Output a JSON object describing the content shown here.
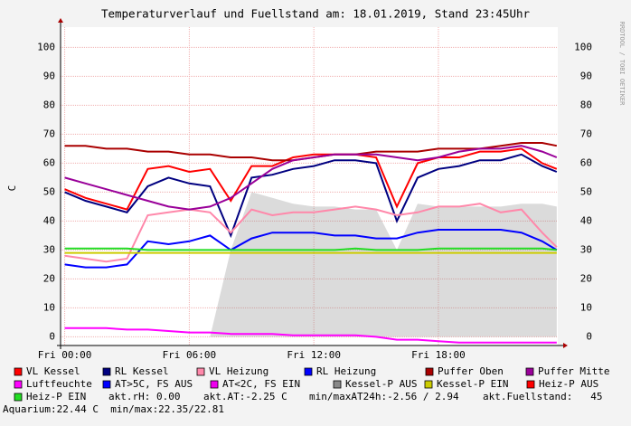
{
  "chart_data": {
    "type": "line",
    "title": "Temperaturverlauf und Fuellstand am: 18.01.2019, Stand 23:45Uhr",
    "ylabel": "C",
    "watermark": "RRDTOOL / TOBI OETIKER",
    "grid": true,
    "xlim": [
      -0.2,
      23.75
    ],
    "xticks": [
      {
        "value": 0,
        "label": "Fri 00:00"
      },
      {
        "value": 6,
        "label": "Fri 06:00"
      },
      {
        "value": 12,
        "label": "Fri 12:00"
      },
      {
        "value": 18,
        "label": "Fri 18:00"
      }
    ],
    "ylim": [
      -3,
      107
    ],
    "yticks": [
      0,
      10,
      20,
      30,
      40,
      50,
      60,
      70,
      80,
      90,
      100
    ],
    "x": [
      0,
      1,
      2,
      3,
      4,
      5,
      6,
      7,
      8,
      9,
      10,
      11,
      12,
      13,
      14,
      15,
      16,
      17,
      18,
      19,
      20,
      21,
      22,
      23,
      23.7
    ],
    "series": [
      {
        "name": "VL Kessel",
        "color": "#ff0000",
        "values": [
          51,
          48,
          46,
          44,
          58,
          59,
          57,
          58,
          47,
          59,
          59,
          62,
          63,
          63,
          63,
          62,
          45,
          60,
          62,
          62,
          64,
          64,
          65,
          60,
          58
        ]
      },
      {
        "name": "RL Kessel",
        "color": "#000080",
        "values": [
          50,
          47,
          45,
          43,
          52,
          55,
          53,
          52,
          35,
          55,
          56,
          58,
          59,
          61,
          61,
          60,
          40,
          55,
          58,
          59,
          61,
          61,
          63,
          59,
          57
        ]
      },
      {
        "name": "VL Heizung",
        "color": "#ff88aa",
        "values": [
          28,
          27,
          26,
          27,
          42,
          43,
          44,
          43,
          36,
          44,
          42,
          43,
          43,
          44,
          45,
          44,
          42,
          43,
          45,
          45,
          46,
          43,
          44,
          36,
          31
        ]
      },
      {
        "name": "RL Heizung",
        "color": "#0000ff",
        "values": [
          25,
          24,
          24,
          25,
          33,
          32,
          33,
          35,
          30,
          34,
          36,
          36,
          36,
          35,
          35,
          34,
          34,
          36,
          37,
          37,
          37,
          37,
          36,
          33,
          30
        ]
      },
      {
        "name": "Puffer Oben",
        "color": "#aa0000",
        "values": [
          66,
          66,
          65,
          65,
          64,
          64,
          63,
          63,
          62,
          62,
          61,
          61,
          62,
          63,
          63,
          64,
          64,
          64,
          65,
          65,
          65,
          66,
          67,
          67,
          66
        ]
      },
      {
        "name": "Puffer Mitte",
        "color": "#990099",
        "values": [
          55,
          53,
          51,
          49,
          47,
          45,
          44,
          45,
          48,
          53,
          58,
          61,
          62,
          63,
          63,
          63,
          62,
          61,
          62,
          64,
          65,
          65,
          66,
          64,
          62
        ]
      },
      {
        "name": "Luftfeuchte",
        "color": "#ff00ff",
        "values": [
          3,
          3,
          3,
          2.5,
          2.5,
          2,
          1.5,
          1.5,
          1,
          1,
          1,
          0.5,
          0.5,
          0.5,
          0.5,
          0,
          -1,
          -1,
          -1.5,
          -2,
          -2,
          -2,
          -2,
          -2,
          -2
        ]
      },
      {
        "name": "AT>5C, FS AUS",
        "color": "#0000ff",
        "values": [
          null,
          null,
          null,
          null,
          null,
          null,
          null,
          null,
          null,
          null,
          null,
          null,
          null,
          null,
          null,
          null,
          null,
          null,
          null,
          null,
          null,
          null,
          null,
          null,
          null
        ]
      },
      {
        "name": "AT<2C, FS EIN",
        "color": "#ee00ee",
        "values": [
          null,
          null,
          null,
          null,
          null,
          null,
          null,
          null,
          null,
          null,
          null,
          null,
          null,
          null,
          null,
          null,
          null,
          null,
          null,
          null,
          null,
          null,
          null,
          null,
          null
        ]
      },
      {
        "name": "Kessel-P AUS",
        "color": "#888888",
        "area": true,
        "values": [
          0,
          0,
          0,
          0,
          0,
          0,
          0,
          0,
          30,
          50,
          48,
          46,
          45,
          45,
          44,
          44,
          30,
          46,
          45,
          45,
          45,
          45,
          46,
          46,
          45
        ]
      },
      {
        "name": "Kessel-P EIN",
        "color": "#cccc00",
        "values": [
          29,
          29,
          29,
          29,
          29,
          29,
          29,
          29,
          29,
          29,
          29,
          29,
          29,
          29,
          29,
          29,
          29,
          29,
          29,
          29,
          29,
          29,
          29,
          29,
          29
        ]
      },
      {
        "name": "Heiz-P AUS",
        "color": "#ff0000",
        "values": [
          null,
          null,
          null,
          null,
          null,
          null,
          null,
          null,
          null,
          null,
          null,
          null,
          null,
          null,
          null,
          null,
          null,
          null,
          null,
          null,
          null,
          null,
          null,
          null,
          null
        ]
      },
      {
        "name": "Heiz-P EIN",
        "color": "#22dd22",
        "values": [
          30.5,
          30.5,
          30.5,
          30.5,
          30,
          30,
          30,
          30,
          30,
          30,
          30,
          30,
          30,
          30,
          30.5,
          30,
          30,
          30,
          30.5,
          30.5,
          30.5,
          30.5,
          30.5,
          30.5,
          30
        ]
      }
    ],
    "notes": [
      "akt.rH: 0.00",
      "akt.AT:-2.25 C",
      "min/maxAT24h:-2.56 / 2.94",
      "akt.Fuellstand:   45",
      "Aquarium:22.44 C  min/max:22.35/22.81"
    ]
  }
}
